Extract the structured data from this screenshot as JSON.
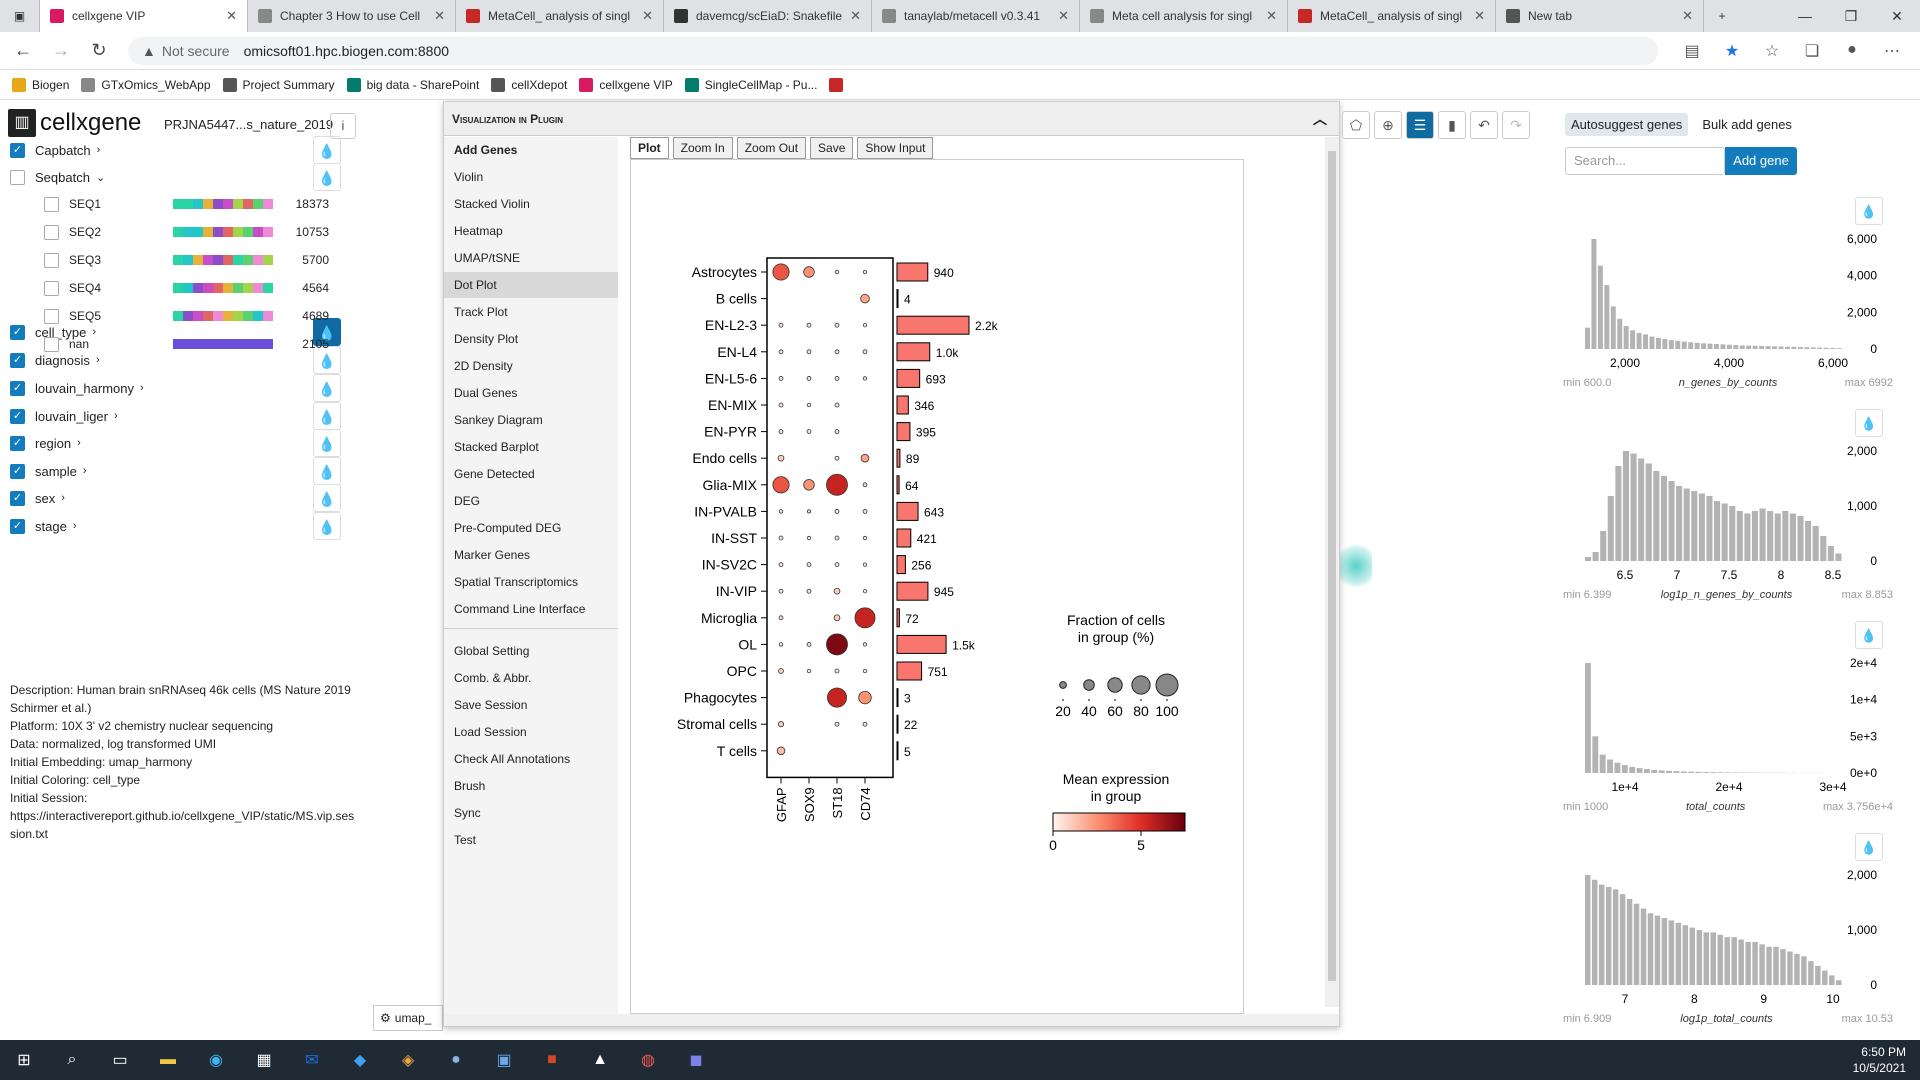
{
  "browser": {
    "tabs": [
      {
        "label": "cellxgene VIP",
        "color": "#d81b60",
        "active": true
      },
      {
        "label": "Chapter 3 How to use Cell",
        "color": "#888888"
      },
      {
        "label": "MetaCell_ analysis of singl",
        "color": "#c62828"
      },
      {
        "label": "davemcg/scEiaD: Snakefile",
        "color": "#333333"
      },
      {
        "label": "tanaylab/metacell v0.3.41",
        "color": "#888888"
      },
      {
        "label": "Meta cell analysis for singl",
        "color": "#888888"
      },
      {
        "label": "MetaCell_ analysis of singl",
        "color": "#c62828"
      },
      {
        "label": "New tab",
        "color": "#555555"
      }
    ],
    "new_tab": "+",
    "not_secure": "Not secure",
    "url": "omicsoft01.hpc.biogen.com:8800",
    "bookmarks": [
      {
        "label": "Biogen",
        "color": "#e6a817"
      },
      {
        "label": "GTxOmics_WebApp",
        "color": "#888888"
      },
      {
        "label": "Project Summary",
        "color": "#555555"
      },
      {
        "label": "big data - SharePoint",
        "color": "#037c6e"
      },
      {
        "label": "cellXdepot",
        "color": "#555555"
      },
      {
        "label": "cellxgene VIP",
        "color": "#d81b60"
      },
      {
        "label": "SingleCellMap - Pu...",
        "color": "#037c6e"
      }
    ]
  },
  "app": {
    "logo": "cellxgene",
    "dataset": "PRJNA5447...s_nature_2019",
    "categories": [
      {
        "name": "Capbatch",
        "checked": true
      },
      {
        "name": "Seqbatch",
        "checked": false,
        "expanded": true
      },
      {
        "name": "cell_type",
        "checked": true,
        "active": true
      },
      {
        "name": "diagnosis",
        "checked": true
      },
      {
        "name": "louvain_harmony",
        "checked": true
      },
      {
        "name": "louvain_liger",
        "checked": true
      },
      {
        "name": "region",
        "checked": true
      },
      {
        "name": "sample",
        "checked": true
      },
      {
        "name": "sex",
        "checked": true
      },
      {
        "name": "stage",
        "checked": true
      }
    ],
    "seqbatch_values": [
      {
        "name": "SEQ1",
        "count": "18373"
      },
      {
        "name": "SEQ2",
        "count": "10753"
      },
      {
        "name": "SEQ3",
        "count": "5700"
      },
      {
        "name": "SEQ4",
        "count": "4564"
      },
      {
        "name": "SEQ5",
        "count": "4689"
      },
      {
        "name": "nan",
        "count": "2105"
      }
    ],
    "description": [
      "Description: Human brain snRNAseq 46k cells (MS Nature 2019 Schirmer et al.)",
      "Platform: 10X 3' v2 chemistry nuclear sequencing",
      "Data: normalized, log transformed UMI",
      "Initial Embedding: umap_harmony",
      "Initial Coloring: cell_type",
      "Initial Session:",
      "https://interactivereport.github.io/cellxgene_VIP/static/MS.vip.session.txt"
    ],
    "embedding_label": "umap_"
  },
  "plugin": {
    "title": "Visualization in Plugin",
    "menu": [
      "Add Genes",
      "Violin",
      "Stacked Violin",
      "Heatmap",
      "UMAP/tSNE",
      "Dot Plot",
      "Track Plot",
      "Density Plot",
      "2D Density",
      "Dual Genes",
      "Sankey Diagram",
      "Stacked Barplot",
      "Gene Detected",
      "DEG",
      "Pre-Computed DEG",
      "Marker Genes",
      "Spatial Transcriptomics",
      "Command Line Interface"
    ],
    "menu2": [
      "Global Setting",
      "Comb. & Abbr.",
      "Save Session",
      "Load Session",
      "Check All Annotations",
      "Brush",
      "Sync",
      "Test"
    ],
    "selected": "Dot Plot",
    "toolbar": [
      "Plot",
      "Zoom In",
      "Zoom Out",
      "Save",
      "Show Input"
    ]
  },
  "chart_data": {
    "type": "scatter",
    "genes": [
      "GFAP",
      "SOX9",
      "ST18",
      "CD74"
    ],
    "cell_types": [
      "Astrocytes",
      "B cells",
      "EN-L2-3",
      "EN-L4",
      "EN-L5-6",
      "EN-MIX",
      "EN-PYR",
      "Endo cells",
      "Glia-MIX",
      "IN-PVALB",
      "IN-SST",
      "IN-SV2C",
      "IN-VIP",
      "Microglia",
      "OL",
      "OPC",
      "Phagocytes",
      "Stromal cells",
      "T cells"
    ],
    "fraction_pct": [
      [
        70,
        40,
        3,
        3
      ],
      [
        0,
        0,
        0,
        30
      ],
      [
        5,
        5,
        5,
        2
      ],
      [
        5,
        5,
        5,
        5
      ],
      [
        5,
        5,
        5,
        2
      ],
      [
        5,
        3,
        5,
        0
      ],
      [
        5,
        5,
        5,
        0
      ],
      [
        15,
        0,
        5,
        25
      ],
      [
        70,
        40,
        95,
        5
      ],
      [
        3,
        1,
        5,
        5
      ],
      [
        5,
        2,
        5,
        2
      ],
      [
        5,
        5,
        5,
        2
      ],
      [
        5,
        5,
        15,
        2
      ],
      [
        5,
        0,
        15,
        90
      ],
      [
        3,
        5,
        95,
        2
      ],
      [
        10,
        3,
        5,
        3
      ],
      [
        0,
        0,
        85,
        50
      ],
      [
        12,
        0,
        5,
        5
      ],
      [
        25,
        0,
        0,
        0
      ]
    ],
    "mean_expr": [
      [
        4,
        2.5,
        0.5,
        0.5
      ],
      [
        0,
        0,
        0,
        2
      ],
      [
        0.5,
        0.5,
        0.5,
        0.3
      ],
      [
        0.5,
        0.5,
        0.5,
        0.5
      ],
      [
        0.5,
        0.5,
        0.5,
        0.3
      ],
      [
        0.5,
        0.3,
        0.5,
        0
      ],
      [
        0.5,
        0.5,
        0.5,
        0
      ],
      [
        1,
        0,
        0.5,
        2
      ],
      [
        4,
        2.5,
        5.5,
        0.5
      ],
      [
        0.3,
        0.2,
        0.5,
        0.5
      ],
      [
        0.5,
        0.2,
        0.5,
        0.2
      ],
      [
        0.5,
        0.5,
        0.5,
        0.2
      ],
      [
        0.5,
        0.5,
        1,
        0.2
      ],
      [
        0.5,
        0,
        1,
        5.5
      ],
      [
        0.3,
        0.5,
        7,
        0.2
      ],
      [
        1,
        0.3,
        0.5,
        0.3
      ],
      [
        0,
        0,
        5.5,
        2.5
      ],
      [
        1,
        0,
        0.5,
        0.5
      ],
      [
        1.5,
        0,
        0,
        0
      ]
    ],
    "counts": [
      940,
      4,
      2200,
      1000,
      693,
      346,
      395,
      89,
      64,
      643,
      421,
      256,
      945,
      72,
      1500,
      751,
      3,
      22,
      5
    ],
    "count_labels": [
      "940",
      "4",
      "2.2k",
      "1.0k",
      "693",
      "346",
      "395",
      "89",
      "64",
      "643",
      "421",
      "256",
      "945",
      "72",
      "1.5k",
      "751",
      "3",
      "22",
      "5"
    ],
    "size_legend": {
      "title": "Fraction of cells in group (%)",
      "ticks": [
        20,
        40,
        60,
        80,
        100
      ]
    },
    "color_legend": {
      "title": "Mean expression in group",
      "ticks": [
        0,
        5
      ],
      "range": [
        0,
        7.5
      ]
    }
  },
  "right": {
    "tabs": [
      "Autosuggest genes",
      "Bulk add genes"
    ],
    "search_placeholder": "Search...",
    "add_gene": "Add gene",
    "histograms": [
      {
        "name": "n_genes_by_counts",
        "min": "min 600.0",
        "max": "max 6992",
        "yticks": [
          "6,000",
          "4,000",
          "2,000",
          "0"
        ],
        "xticks": [
          "2,000",
          "4,000",
          "6,000"
        ],
        "bins": [
          1200,
          6200,
          4700,
          3600,
          2400,
          1700,
          1300,
          1050,
          900,
          820,
          700,
          620,
          560,
          500,
          460,
          420,
          380,
          350,
          320,
          300,
          280,
          260,
          240,
          220,
          200,
          190,
          180,
          170,
          160,
          150,
          140,
          130,
          120,
          110,
          100,
          90,
          80,
          70,
          60,
          50
        ]
      },
      {
        "name": "log1p_n_genes_by_counts",
        "min": "min 6.399",
        "max": "max 8.853",
        "yticks": [
          "2,000",
          "1,000",
          "0"
        ],
        "xticks": [
          "6.5",
          "7",
          "7.5",
          "8",
          "8.5"
        ],
        "bins": [
          80,
          180,
          600,
          1300,
          1900,
          2200,
          2150,
          2050,
          1950,
          1800,
          1700,
          1600,
          1500,
          1450,
          1400,
          1350,
          1300,
          1200,
          1150,
          1100,
          1000,
          950,
          1000,
          1050,
          1000,
          950,
          1000,
          950,
          900,
          800,
          700,
          500,
          300,
          150
        ]
      },
      {
        "name": "total_counts",
        "min": "min 1000",
        "max": "max 3.756e+4",
        "yticks": [
          "2e+4",
          "1e+4",
          "5e+3",
          "0e+0"
        ],
        "xticks": [
          "1e+4",
          "2e+4",
          "3e+4"
        ],
        "bins": [
          18000,
          6000,
          3000,
          2200,
          1700,
          1300,
          1000,
          800,
          650,
          500,
          420,
          360,
          300,
          250,
          220,
          190,
          160,
          140,
          120,
          100,
          90,
          80,
          70,
          60,
          50,
          40,
          40,
          30,
          30,
          20,
          20,
          20,
          10,
          10,
          10
        ]
      },
      {
        "name": "log1p_total_counts",
        "min": "min 6.909",
        "max": "max 10.53",
        "yticks": [
          "2,000",
          "1,000",
          "0"
        ],
        "xticks": [
          "7",
          "8",
          "9",
          "10"
        ],
        "bins": [
          2300,
          2200,
          2100,
          2050,
          2000,
          1900,
          1800,
          1700,
          1600,
          1500,
          1450,
          1400,
          1350,
          1300,
          1250,
          1200,
          1150,
          1100,
          1100,
          1050,
          1000,
          1000,
          950,
          900,
          900,
          850,
          800,
          800,
          750,
          700,
          650,
          600,
          500,
          400,
          300,
          200,
          100
        ]
      }
    ]
  },
  "taskbar": {
    "time": "6:50 PM",
    "date": "10/5/2021"
  }
}
